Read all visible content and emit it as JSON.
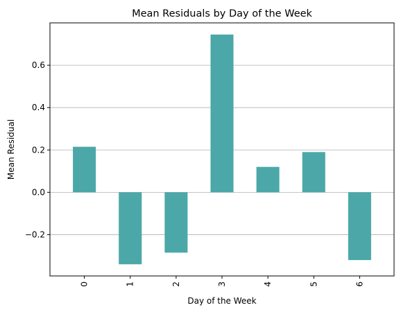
{
  "chart_data": {
    "type": "bar",
    "title": "Mean Residuals by Day of the Week",
    "xlabel": "Day of the Week",
    "ylabel": "Mean Residual",
    "categories": [
      "0",
      "1",
      "2",
      "3",
      "4",
      "5",
      "6"
    ],
    "values": [
      0.215,
      -0.34,
      -0.285,
      0.745,
      0.12,
      0.19,
      -0.32
    ],
    "ylim": [
      -0.395,
      0.8
    ],
    "yticks": [
      -0.2,
      0.0,
      0.2,
      0.4,
      0.6
    ],
    "ytick_labels": [
      "−0.2",
      "0.0",
      "0.2",
      "0.4",
      "0.6"
    ],
    "grid": "y-major",
    "bar_color": "#4ca8a8",
    "xtick_rotation": "vertical"
  }
}
